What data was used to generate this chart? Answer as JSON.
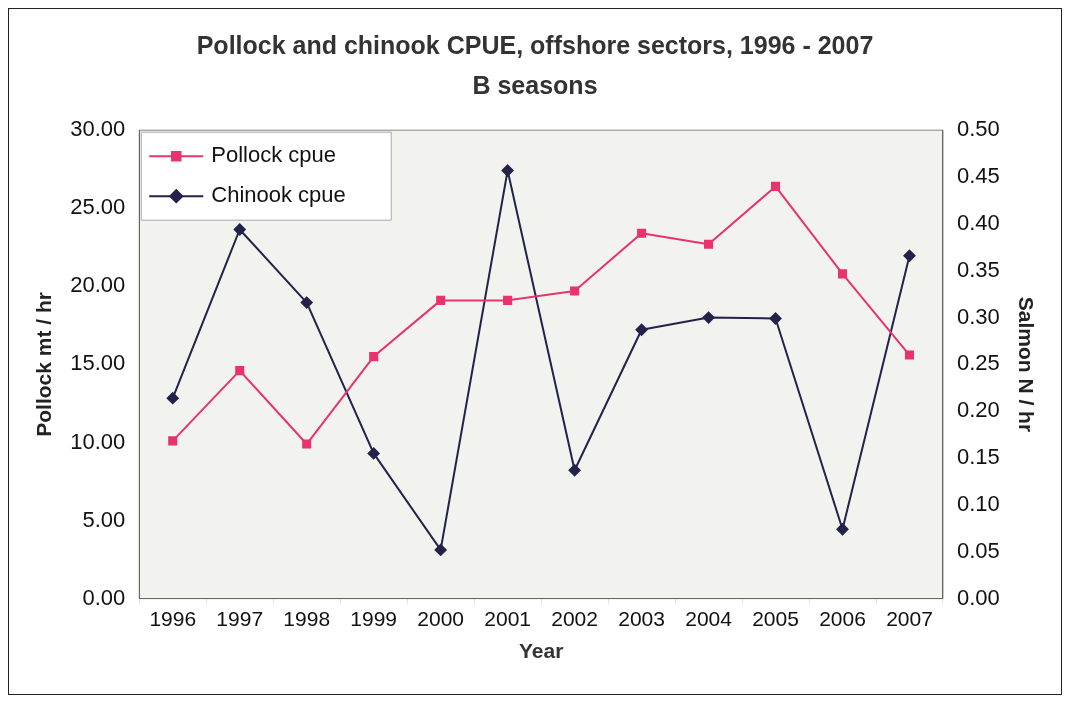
{
  "chart_data": {
    "type": "line",
    "title": "Pollock and chinook CPUE, offshore sectors, 1996 - 2007 B seasons",
    "xlabel": "Year",
    "ylabel": "Pollock mt / hr",
    "y2label": "Salmon N / hr",
    "categories": [
      "1996",
      "1997",
      "1998",
      "1999",
      "2000",
      "2001",
      "2002",
      "2003",
      "2004",
      "2005",
      "2006",
      "2007"
    ],
    "series": [
      {
        "name": "Pollock cpue",
        "color": "#e8336d",
        "marker": "square",
        "values": [
          10.1,
          14.6,
          9.9,
          15.5,
          19.1,
          19.1,
          19.7,
          23.4,
          22.7,
          26.4,
          20.8,
          15.6
        ]
      },
      {
        "name": "Chinook cpue",
        "color": "#22224a",
        "marker": "diamond",
        "axis": "y2",
        "values": [
          0.214,
          0.394,
          0.316,
          0.155,
          0.052,
          0.457,
          0.137,
          0.287,
          0.3,
          0.299,
          0.074,
          0.366
        ]
      }
    ],
    "ylim": [
      0,
      30
    ],
    "yticks": [
      {
        "value": 0,
        "label": "0.00"
      },
      {
        "value": 5,
        "label": "5.00"
      },
      {
        "value": 10,
        "label": "10.00"
      },
      {
        "value": 15,
        "label": "15.00"
      },
      {
        "value": 20,
        "label": "20.00"
      },
      {
        "value": 25,
        "label": "25.00"
      },
      {
        "value": 30,
        "label": "30.00"
      }
    ],
    "y2lim": [
      0,
      0.5
    ],
    "y2ticks": [
      {
        "value": 0,
        "label": "0.00"
      },
      {
        "value": 0.05,
        "label": "0.05"
      },
      {
        "value": 0.1,
        "label": "0.10"
      },
      {
        "value": 0.15,
        "label": "0.15"
      },
      {
        "value": 0.2,
        "label": "0.20"
      },
      {
        "value": 0.25,
        "label": "0.25"
      },
      {
        "value": 0.3,
        "label": "0.30"
      },
      {
        "value": 0.35,
        "label": "0.35"
      },
      {
        "value": 0.4,
        "label": "0.40"
      },
      {
        "value": 0.45,
        "label": "0.45"
      },
      {
        "value": 0.5,
        "label": "0.50"
      }
    ],
    "grid": false,
    "legend": "top left",
    "line_style": "solid"
  }
}
